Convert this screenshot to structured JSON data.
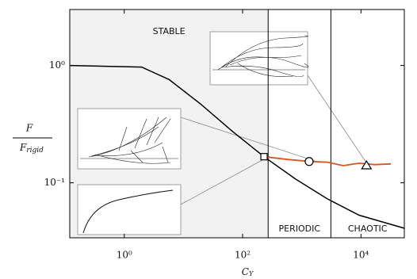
{
  "chart_data": {
    "type": "line",
    "xscale": "log",
    "yscale": "log",
    "xlim": [
      0.12,
      54000
    ],
    "ylim": [
      0.034,
      3
    ],
    "xticks": [
      {
        "value": 1,
        "label": "10⁰"
      },
      {
        "value": 100,
        "label": "10²"
      },
      {
        "value": 10000,
        "label": "10⁴"
      }
    ],
    "yticks": [
      {
        "value": 1,
        "label": "10⁰"
      },
      {
        "value": 0.1,
        "label": "10⁻¹"
      }
    ],
    "xlabel": {
      "main": "C",
      "sub": "Y"
    },
    "ylabel": {
      "numerator": "F",
      "denominator": "F",
      "denominator_sub": "rigid"
    },
    "boundaries": [
      270,
      3100
    ],
    "region_labels": [
      "STABLE",
      "PERIODIC",
      "CHAOTIC"
    ],
    "region_shade": "#f2f2f2",
    "series": [
      {
        "color": "#000000",
        "x": [
          0.12,
          1.96,
          5.7,
          19.5,
          67,
          230,
          780,
          2700,
          9300,
          54000
        ],
        "values": [
          1,
          0.97,
          0.76,
          0.47,
          0.275,
          0.167,
          0.108,
          0.073,
          0.053,
          0.041
        ]
      },
      {
        "color": "#d9541e",
        "x": [
          230,
          580,
          1330,
          2700,
          5000,
          9300,
          17000,
          32000
        ],
        "values": [
          0.167,
          0.158,
          0.152,
          0.15,
          0.14,
          0.147,
          0.143,
          0.145
        ]
      }
    ],
    "markers": [
      {
        "shape": "square",
        "x": 230,
        "y": 0.167
      },
      {
        "shape": "circle",
        "x": 1330,
        "y": 0.152
      },
      {
        "shape": "triangle",
        "x": 12400,
        "y": 0.14
      }
    ]
  }
}
